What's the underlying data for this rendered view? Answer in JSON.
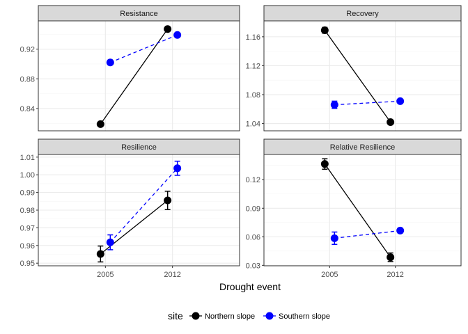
{
  "chart_data": [
    {
      "type": "line",
      "title": "Resistance",
      "categories": [
        "2005",
        "2012"
      ],
      "ylim": [
        0.81,
        0.958
      ],
      "yticks": [
        "0.84",
        "0.88",
        "0.92"
      ],
      "series": [
        {
          "name": "Northern slope",
          "values": [
            0.819,
            0.947
          ],
          "err": [
            0.002,
            0.002
          ]
        },
        {
          "name": "Southern slope",
          "values": [
            0.902,
            0.939
          ],
          "err": [
            0.003,
            0.002
          ]
        }
      ]
    },
    {
      "type": "line",
      "title": "Recovery",
      "categories": [
        "2005",
        "2012"
      ],
      "ylim": [
        1.03,
        1.182
      ],
      "yticks": [
        "1.04",
        "1.08",
        "1.12",
        "1.16"
      ],
      "series": [
        {
          "name": "Northern slope",
          "values": [
            1.169,
            1.042
          ],
          "err": [
            0.004,
            0.002
          ]
        },
        {
          "name": "Southern slope",
          "values": [
            1.066,
            1.071
          ],
          "err": [
            0.005,
            0.002
          ]
        }
      ]
    },
    {
      "type": "line",
      "title": "Resilience",
      "categories": [
        "2005",
        "2012"
      ],
      "ylim": [
        0.9485,
        1.0115
      ],
      "yticks": [
        "0.95",
        "0.96",
        "0.97",
        "0.98",
        "0.99",
        "1.00",
        "1.01"
      ],
      "series": [
        {
          "name": "Northern slope",
          "values": [
            0.9552,
            0.9855
          ],
          "err": [
            0.0045,
            0.0052
          ]
        },
        {
          "name": "Southern slope",
          "values": [
            0.9618,
            1.0037
          ],
          "err": [
            0.0042,
            0.004
          ]
        }
      ]
    },
    {
      "type": "line",
      "title": "Relative Resilience",
      "categories": [
        "2005",
        "2012"
      ],
      "ylim": [
        0.0295,
        0.1465
      ],
      "yticks": [
        "0.03",
        "0.06",
        "0.09",
        "0.12"
      ],
      "series": [
        {
          "name": "Northern slope",
          "values": [
            0.1365,
            0.0385
          ],
          "err": [
            0.0055,
            0.0045
          ]
        },
        {
          "name": "Southern slope",
          "values": [
            0.0585,
            0.0665
          ],
          "err": [
            0.0065,
            0.0025
          ]
        }
      ]
    }
  ],
  "xlabel": "Drought event",
  "legend": {
    "title": "site",
    "position": "bottom",
    "entries": [
      "Northern slope",
      "Southern slope"
    ]
  },
  "colors": {
    "Northern slope": "#000000",
    "Southern slope": "#0000FF",
    "panel_border": "#333333",
    "strip_fill": "#D9D9D9",
    "grid_major": "#EBEBEB",
    "grid_minor": "#F5F5F5"
  },
  "line_styles": {
    "Northern slope": "solid",
    "Southern slope": "dashed"
  }
}
